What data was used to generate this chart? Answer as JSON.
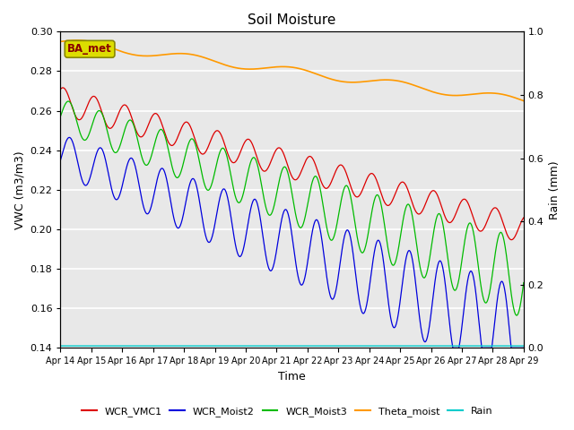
{
  "title": "Soil Moisture",
  "xlabel": "Time",
  "ylabel_left": "VWC (m3/m3)",
  "ylabel_right": "Rain (mm)",
  "ylim_left": [
    0.14,
    0.3
  ],
  "ylim_right": [
    0.0,
    1.0
  ],
  "plot_bg_color": "#e8e8e8",
  "fig_bg_color": "#ffffff",
  "label_box_text": "BA_met",
  "label_box_color": "#dddd00",
  "label_box_text_color": "#880000",
  "legend_entries": [
    "WCR_VMC1",
    "WCR_Moist2",
    "WCR_Moist3",
    "Theta_moist",
    "Rain"
  ],
  "line_colors": [
    "#dd0000",
    "#0000dd",
    "#00bb00",
    "#ff9900",
    "#00cccc"
  ],
  "x_tick_labels": [
    "Apr 14",
    "Apr 15",
    "Apr 16",
    "Apr 17",
    "Apr 18",
    "Apr 19",
    "Apr 20",
    "Apr 21",
    "Apr 22",
    "Apr 23",
    "Apr 24",
    "Apr 25",
    "Apr 26",
    "Apr 27",
    "Apr 28",
    "Apr 29"
  ],
  "yticks_left": [
    0.14,
    0.16,
    0.18,
    0.2,
    0.22,
    0.24,
    0.26,
    0.28,
    0.3
  ],
  "yticks_right": [
    0.0,
    0.2,
    0.4,
    0.6,
    0.8,
    1.0
  ]
}
